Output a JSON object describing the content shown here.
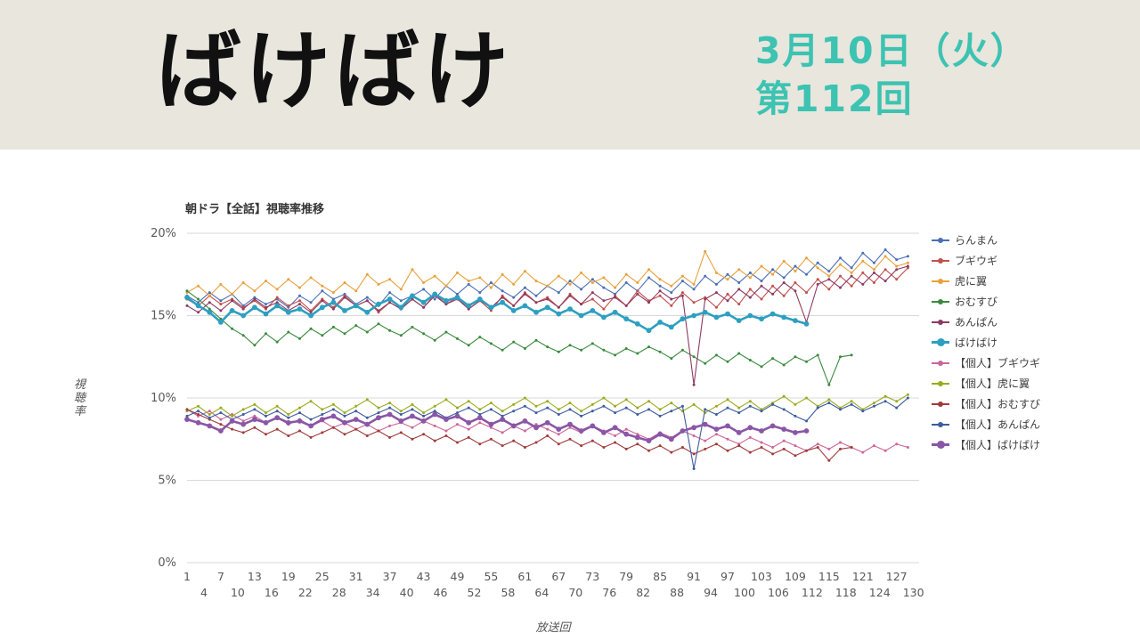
{
  "banner": {
    "show_title": "ばけばけ",
    "date_line": "3月10日（火）",
    "episode_line": "第112回",
    "accent_color": "#3cc3b1",
    "bg_color": "#e9e6de"
  },
  "chart_data": {
    "type": "line",
    "title": "朝ドラ【全話】視聴率推移",
    "xlabel": "放送回",
    "ylabel": "視聴率",
    "ylim": [
      0,
      20
    ],
    "xlim": [
      1,
      131
    ],
    "grid": true,
    "legend_position": "right",
    "y_ticks": [
      {
        "value": 20,
        "label": "20%"
      },
      {
        "value": 15,
        "label": "15%"
      },
      {
        "value": 10,
        "label": "10%"
      },
      {
        "value": 5,
        "label": "5%"
      },
      {
        "value": 0,
        "label": "0%"
      }
    ],
    "x_ticks_row1": [
      1,
      7,
      13,
      19,
      25,
      31,
      37,
      43,
      49,
      55,
      61,
      67,
      73,
      79,
      85,
      91,
      97,
      103,
      109,
      115,
      121,
      127
    ],
    "x_ticks_row2": [
      4,
      10,
      16,
      22,
      28,
      34,
      40,
      46,
      52,
      58,
      64,
      70,
      76,
      82,
      88,
      94,
      100,
      106,
      112,
      118,
      124,
      130
    ],
    "series": [
      {
        "name": "らんまん",
        "color": "#4a6fb5",
        "bold": false,
        "start": 1,
        "step": 2,
        "values": [
          16.2,
          15.8,
          16.4,
          15.9,
          16.3,
          15.6,
          16.1,
          15.7,
          16.0,
          15.5,
          16.2,
          15.8,
          16.5,
          16.0,
          16.3,
          15.7,
          16.1,
          15.6,
          16.4,
          15.9,
          16.2,
          16.6,
          16.0,
          16.8,
          16.3,
          16.9,
          16.4,
          17.0,
          16.5,
          16.1,
          16.7,
          16.2,
          16.8,
          16.4,
          17.1,
          16.6,
          17.2,
          16.7,
          16.3,
          17.0,
          16.5,
          17.3,
          16.8,
          16.4,
          17.1,
          16.6,
          17.4,
          16.9,
          17.5,
          17.0,
          17.6,
          17.1,
          17.8,
          17.3,
          18.0,
          17.5,
          18.2,
          17.7,
          18.5,
          17.9,
          18.8,
          18.2,
          19.0,
          18.4,
          18.6
        ]
      },
      {
        "name": "ブギウギ",
        "color": "#c0504d",
        "bold": false,
        "start": 1,
        "step": 2,
        "values": [
          16.0,
          15.6,
          16.2,
          15.7,
          16.0,
          15.5,
          15.9,
          15.4,
          16.1,
          15.6,
          15.9,
          15.3,
          16.0,
          15.5,
          16.2,
          15.6,
          15.9,
          15.2,
          15.8,
          15.4,
          16.0,
          15.5,
          16.3,
          15.7,
          16.1,
          15.4,
          15.9,
          15.3,
          16.2,
          15.6,
          16.4,
          15.8,
          16.1,
          15.5,
          16.3,
          15.7,
          16.0,
          15.4,
          16.2,
          15.6,
          16.5,
          15.9,
          16.2,
          15.6,
          16.4,
          15.8,
          16.1,
          15.5,
          16.3,
          15.7,
          16.6,
          16.0,
          16.8,
          16.2,
          17.0,
          16.4,
          17.2,
          16.6,
          17.4,
          16.8,
          17.6,
          17.0,
          17.8,
          17.2,
          17.9
        ]
      },
      {
        "name": "虎に翼",
        "color": "#e8a13c",
        "bold": false,
        "start": 1,
        "step": 2,
        "values": [
          16.4,
          16.8,
          16.2,
          16.9,
          16.3,
          17.0,
          16.5,
          17.1,
          16.6,
          17.2,
          16.7,
          17.3,
          16.8,
          16.4,
          17.0,
          16.5,
          17.5,
          16.9,
          17.2,
          16.6,
          17.8,
          17.0,
          17.4,
          16.8,
          17.6,
          17.1,
          17.3,
          16.7,
          17.5,
          16.9,
          17.7,
          17.1,
          16.8,
          17.4,
          16.9,
          17.6,
          17.0,
          17.3,
          16.7,
          17.5,
          17.0,
          17.8,
          17.2,
          16.8,
          17.4,
          16.9,
          18.9,
          17.6,
          17.2,
          17.8,
          17.3,
          18.0,
          17.5,
          18.3,
          17.7,
          18.5,
          17.9,
          17.4,
          18.1,
          17.6,
          18.3,
          17.8,
          18.6,
          18.0,
          18.2
        ]
      },
      {
        "name": "おむすび",
        "color": "#3b8a3e",
        "bold": false,
        "start": 1,
        "step": 2,
        "values": [
          16.5,
          16.0,
          15.4,
          14.8,
          14.2,
          13.8,
          13.2,
          13.9,
          13.4,
          14.0,
          13.6,
          14.2,
          13.8,
          14.3,
          13.9,
          14.4,
          14.0,
          14.5,
          14.1,
          13.8,
          14.3,
          13.9,
          13.5,
          14.0,
          13.6,
          13.2,
          13.7,
          13.3,
          12.9,
          13.4,
          13.0,
          13.5,
          13.1,
          12.8,
          13.2,
          12.9,
          13.3,
          12.9,
          12.6,
          13.0,
          12.7,
          13.1,
          12.8,
          12.4,
          12.9,
          12.5,
          12.1,
          12.6,
          12.2,
          12.7,
          12.3,
          11.9,
          12.4,
          12.0,
          12.5,
          12.2,
          12.6,
          10.8,
          12.5,
          12.6
        ]
      },
      {
        "name": "あんぱん",
        "color": "#8e3a62",
        "bold": false,
        "start": 1,
        "step": 2,
        "values": [
          15.6,
          15.2,
          15.8,
          15.3,
          15.9,
          15.4,
          16.0,
          15.5,
          15.8,
          15.3,
          15.7,
          15.2,
          15.9,
          15.4,
          16.1,
          15.6,
          15.9,
          15.3,
          15.8,
          15.4,
          16.0,
          15.5,
          16.2,
          15.7,
          16.0,
          15.4,
          15.9,
          15.5,
          16.1,
          15.6,
          16.3,
          15.8,
          16.0,
          15.5,
          16.2,
          15.7,
          16.4,
          15.9,
          16.1,
          15.6,
          16.3,
          15.8,
          16.5,
          16.0,
          16.2,
          10.8,
          16.0,
          16.4,
          15.9,
          16.6,
          16.1,
          16.8,
          16.3,
          17.0,
          16.5,
          14.6,
          16.9,
          17.2,
          16.7,
          17.4,
          16.9,
          17.6,
          17.1,
          17.8,
          18.0
        ]
      },
      {
        "name": "ばけばけ",
        "color": "#2d9fc0",
        "bold": true,
        "start": 1,
        "step": 2,
        "values": [
          16.1,
          15.6,
          15.2,
          14.6,
          15.3,
          15.0,
          15.5,
          15.1,
          15.6,
          15.2,
          15.4,
          15.0,
          15.5,
          15.8,
          15.3,
          15.6,
          15.2,
          15.7,
          16.0,
          15.5,
          16.2,
          15.8,
          16.3,
          15.9,
          16.1,
          15.6,
          16.0,
          15.5,
          15.8,
          15.3,
          15.6,
          15.2,
          15.5,
          15.1,
          15.4,
          15.0,
          15.3,
          14.9,
          15.2,
          14.8,
          14.5,
          14.1,
          14.6,
          14.3,
          14.8,
          15.0,
          15.2,
          14.9,
          15.1,
          14.7,
          15.0,
          14.8,
          15.1,
          14.9,
          14.7,
          14.5
        ]
      },
      {
        "name": "【個人】ブギウギ",
        "color": "#cc6699",
        "bold": false,
        "start": 1,
        "step": 2,
        "values": [
          9.3,
          8.9,
          9.2,
          8.7,
          9.0,
          8.6,
          8.9,
          8.5,
          8.8,
          8.4,
          8.7,
          8.3,
          8.6,
          8.2,
          8.5,
          8.1,
          8.4,
          8.0,
          8.3,
          8.5,
          8.2,
          8.6,
          8.3,
          8.0,
          8.4,
          8.1,
          8.5,
          8.2,
          7.9,
          8.3,
          8.0,
          8.4,
          8.1,
          7.8,
          8.2,
          7.9,
          8.3,
          8.0,
          7.7,
          8.1,
          7.8,
          7.5,
          7.9,
          7.6,
          8.0,
          7.7,
          7.4,
          7.8,
          7.5,
          7.2,
          7.6,
          7.3,
          7.0,
          7.4,
          7.1,
          6.8,
          7.2,
          6.9,
          7.3,
          7.0,
          6.7,
          7.1,
          6.8,
          7.2,
          7.0
        ]
      },
      {
        "name": "【個人】虎に翼",
        "color": "#9aab1c",
        "bold": false,
        "start": 1,
        "step": 2,
        "values": [
          9.2,
          9.5,
          9.0,
          9.4,
          8.9,
          9.3,
          9.6,
          9.1,
          9.5,
          9.0,
          9.4,
          9.8,
          9.3,
          9.6,
          9.1,
          9.5,
          9.9,
          9.4,
          9.7,
          9.2,
          9.6,
          9.1,
          9.5,
          9.9,
          9.4,
          9.8,
          9.3,
          9.7,
          9.2,
          9.6,
          10.0,
          9.5,
          9.8,
          9.3,
          9.7,
          9.2,
          9.6,
          10.0,
          9.5,
          9.9,
          9.4,
          9.8,
          9.3,
          9.7,
          9.2,
          9.6,
          9.1,
          9.5,
          9.9,
          9.4,
          9.8,
          9.3,
          9.7,
          10.1,
          9.6,
          10.0,
          9.5,
          9.9,
          9.4,
          9.8,
          9.3,
          9.7,
          10.1,
          9.8,
          10.2
        ]
      },
      {
        "name": "【個人】おむすび",
        "color": "#a03b3b",
        "bold": false,
        "start": 1,
        "step": 2,
        "values": [
          9.3,
          9.0,
          8.7,
          8.4,
          8.1,
          7.9,
          8.2,
          7.8,
          8.1,
          7.7,
          8.0,
          7.6,
          7.9,
          8.2,
          7.8,
          8.1,
          7.7,
          8.0,
          7.6,
          7.9,
          7.5,
          7.8,
          7.4,
          7.7,
          7.3,
          7.6,
          7.2,
          7.5,
          7.1,
          7.4,
          7.0,
          7.3,
          7.7,
          7.2,
          7.5,
          7.1,
          7.4,
          7.0,
          7.3,
          6.9,
          7.2,
          6.8,
          7.1,
          6.7,
          7.0,
          6.6,
          6.9,
          7.2,
          6.8,
          7.1,
          6.7,
          7.0,
          6.6,
          6.9,
          6.5,
          6.8,
          7.0,
          6.2,
          6.9,
          7.0
        ]
      },
      {
        "name": "【個人】あんぱん",
        "color": "#3d5c9e",
        "bold": false,
        "start": 1,
        "step": 2,
        "values": [
          8.9,
          9.2,
          8.8,
          9.1,
          8.7,
          9.0,
          9.3,
          8.9,
          9.2,
          8.8,
          9.1,
          8.7,
          9.0,
          9.3,
          8.9,
          9.2,
          8.8,
          9.1,
          9.4,
          9.0,
          9.3,
          8.9,
          9.2,
          8.8,
          9.1,
          9.4,
          9.0,
          9.3,
          8.9,
          9.2,
          9.5,
          9.1,
          9.4,
          9.0,
          9.3,
          8.9,
          9.2,
          9.5,
          9.1,
          9.4,
          9.0,
          9.3,
          8.9,
          9.2,
          9.5,
          5.7,
          9.3,
          9.0,
          9.4,
          9.1,
          9.5,
          9.2,
          9.6,
          9.3,
          8.9,
          8.6,
          9.4,
          9.7,
          9.3,
          9.6,
          9.2,
          9.5,
          9.8,
          9.4,
          10.0
        ]
      },
      {
        "name": "【個人】ばけばけ",
        "color": "#8a56a6",
        "bold": true,
        "start": 1,
        "step": 2,
        "values": [
          8.7,
          8.5,
          8.3,
          8.0,
          8.6,
          8.4,
          8.7,
          8.5,
          8.8,
          8.5,
          8.6,
          8.3,
          8.7,
          8.9,
          8.5,
          8.7,
          8.4,
          8.8,
          9.0,
          8.6,
          8.9,
          8.6,
          9.0,
          8.7,
          8.9,
          8.5,
          8.8,
          8.4,
          8.7,
          8.3,
          8.6,
          8.2,
          8.5,
          8.1,
          8.4,
          8.0,
          8.3,
          7.9,
          8.2,
          7.8,
          7.6,
          7.4,
          7.8,
          7.5,
          8.0,
          8.2,
          8.4,
          8.1,
          8.3,
          7.9,
          8.2,
          8.0,
          8.3,
          8.1,
          7.9,
          8.0
        ]
      }
    ]
  }
}
